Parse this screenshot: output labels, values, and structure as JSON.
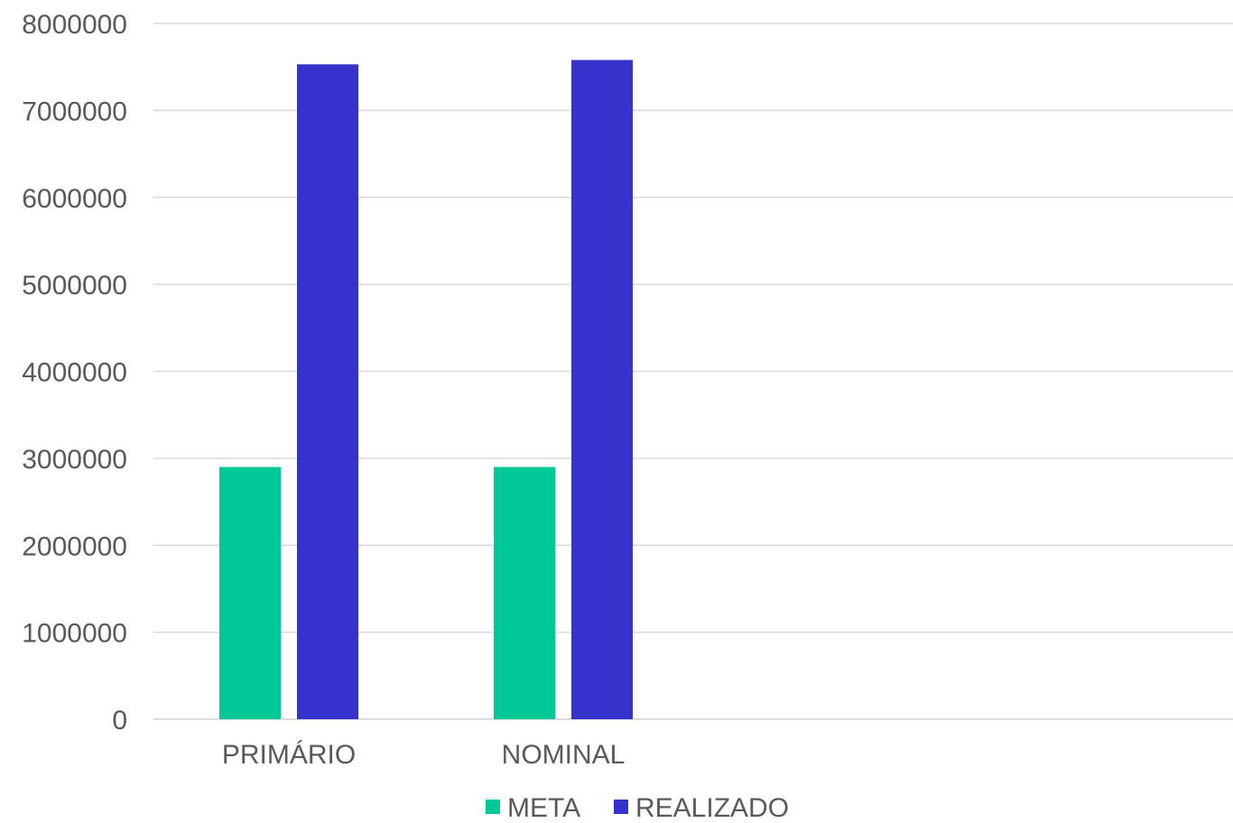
{
  "chart_data": {
    "type": "bar",
    "categories": [
      "PRIMÁRIO",
      "NOMINAL"
    ],
    "series": [
      {
        "name": "META",
        "values": [
          2900000,
          2900000
        ],
        "color": "#00C896"
      },
      {
        "name": "REALIZADO",
        "values": [
          7530000,
          7580000
        ],
        "color": "#3533CC"
      }
    ],
    "ylim": [
      0,
      8000000
    ],
    "yticks": [
      "0",
      "1000000",
      "2000000",
      "3000000",
      "4000000",
      "5000000",
      "6000000",
      "7000000",
      "8000000"
    ],
    "grid": true,
    "legend_position": "bottom-center",
    "title": "",
    "xlabel": "",
    "ylabel": ""
  }
}
